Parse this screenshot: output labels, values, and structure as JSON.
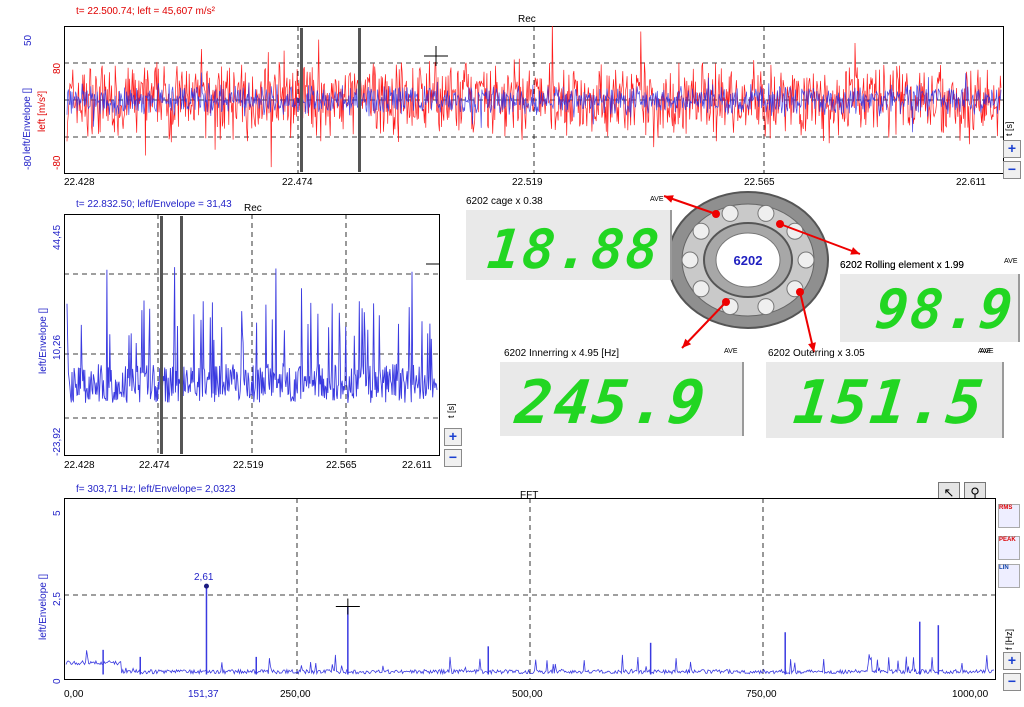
{
  "top_panel": {
    "cursor_readout": "t= 22.500.74; left = 45,607 m/s²",
    "title": "Rec",
    "ylabel_blue": "left/Envelope []",
    "ylabel_red": "left [m/s²]",
    "yticks_blue": [
      "50",
      "-80"
    ],
    "yticks_red": [
      "80",
      "-80"
    ],
    "xticks": [
      "22.428",
      "22.474",
      "22.519",
      "22.565",
      "22.611"
    ],
    "unit": "t [s]",
    "colors": {
      "red": "#ff1010",
      "blue": "#2a2ae0"
    }
  },
  "mid_panel": {
    "cursor_readout": "t= 22.832.50; left/Envelope = 31,43",
    "title": "Rec",
    "ylabel": "left/Envelope []",
    "yticks": [
      "44,45",
      "10,26",
      "-23,92"
    ],
    "xticks": [
      "22.428",
      "22.474",
      "22.519",
      "22.565",
      "22.611"
    ],
    "unit": "t [s]"
  },
  "bearing": {
    "label": "6202",
    "displays": [
      {
        "title": "6202 cage x 0.38",
        "ave": "AVE",
        "value": "18.88"
      },
      {
        "title": "6202  Rolling element x 1.99",
        "ave": "AVE",
        "value": "98.9"
      },
      {
        "title": "6202 Innerring x 4.95 [Hz]",
        "ave": "AVE",
        "value": "245.9"
      },
      {
        "title": "6202 Outerring x 3.05",
        "ave": "AVE",
        "value": "151.5"
      }
    ]
  },
  "fft_panel": {
    "cursor_readout": "f= 303,71 Hz; left/Envelope= 2,0323",
    "title": "FFT",
    "ylabel": "left/Envelope []",
    "yticks": [
      "5",
      "2,5",
      "0"
    ],
    "xticks": [
      "0,00",
      "250,00",
      "500,00",
      "750,00",
      "1000,00"
    ],
    "marker_xtick": "151,37",
    "peak_label": "2,61",
    "unit": "f [Hz]",
    "toolbar": {
      "pointer_icon": "cursor-arrow-icon",
      "zoom_icon": "magnifier-icon"
    },
    "legend_icons": [
      "RMS",
      "PEAK",
      "LIN"
    ]
  },
  "zoom": {
    "plus": "+",
    "minus": "−"
  },
  "chart_data": [
    {
      "type": "line",
      "title": "Rec",
      "xlabel": "t [s]",
      "ylabel": "left/Envelope []",
      "xlim": [
        22.428,
        22.611
      ],
      "ylim": [
        -80,
        80
      ],
      "grid": true,
      "series": [
        {
          "name": "left [m/s²]",
          "color": "#ff1010",
          "kind": "noise",
          "amplitude": 45
        },
        {
          "name": "left/Envelope []",
          "color": "#2a2ae0",
          "kind": "noise",
          "amplitude": 18
        }
      ]
    },
    {
      "type": "line",
      "title": "Rec",
      "xlabel": "t [s]",
      "ylabel": "left/Envelope []",
      "xlim": [
        22.428,
        22.611
      ],
      "ylim": [
        -23.92,
        44.45
      ],
      "grid": true,
      "series": [
        {
          "name": "left/Envelope []",
          "color": "#3a3ae0",
          "kind": "spiky",
          "baseline": 0
        }
      ]
    },
    {
      "type": "line",
      "title": "FFT",
      "xlabel": "f [Hz]",
      "ylabel": "left/Envelope []",
      "xlim": [
        0,
        1000
      ],
      "ylim": [
        0,
        5
      ],
      "grid": true,
      "series": [
        {
          "name": "left/Envelope []",
          "color": "#3a3ae0",
          "kind": "spectrum"
        }
      ],
      "peaks": [
        [
          151.37,
          2.61
        ],
        [
          303.71,
          2.03
        ],
        [
          920,
          1.6
        ],
        [
          940,
          1.5
        ],
        [
          775,
          1.3
        ],
        [
          630,
          1.0
        ],
        [
          455,
          0.9
        ],
        [
          40,
          0.8
        ],
        [
          80,
          0.6
        ],
        [
          205,
          0.6
        ]
      ]
    }
  ]
}
